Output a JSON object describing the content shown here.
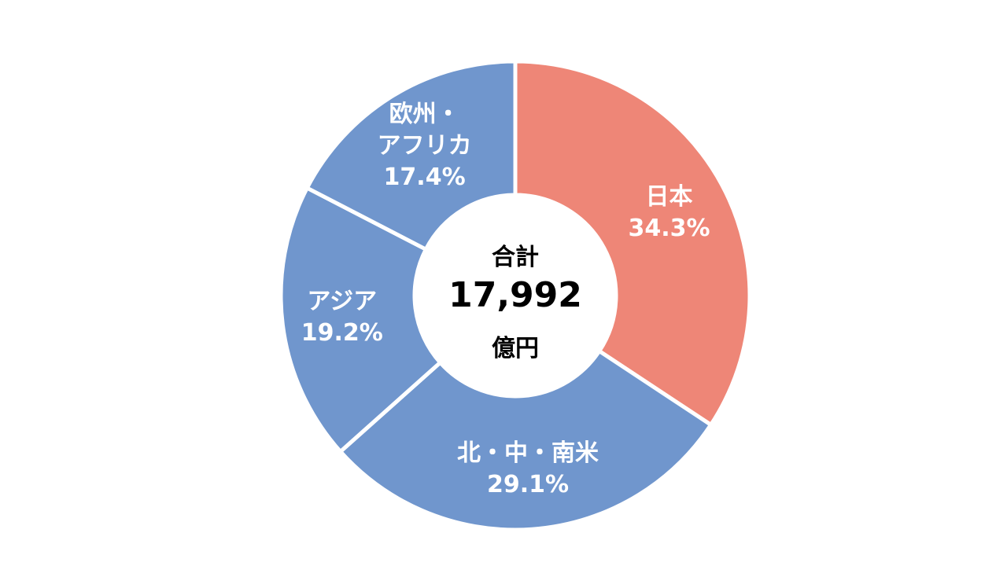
{
  "chart_data": {
    "type": "donut",
    "categories": [
      "日本",
      "北・中・南米",
      "アジア",
      "欧州・\nアフリカ"
    ],
    "values": [
      34.3,
      29.1,
      19.2,
      17.4
    ],
    "value_labels": [
      "34.3%",
      "29.1%",
      "19.2%",
      "17.4%"
    ],
    "colors": [
      "#ee8677",
      "#7096cd",
      "#7096cd",
      "#7096cd"
    ],
    "center_text": [
      "合計",
      "17,992",
      "億円"
    ]
  }
}
